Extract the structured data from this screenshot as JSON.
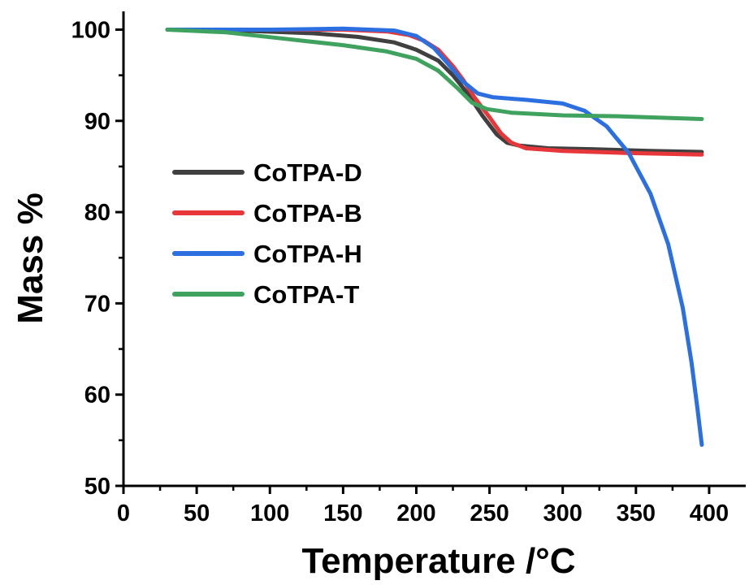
{
  "chart_data": {
    "type": "line",
    "title": "",
    "xlabel": "Temperature /°C",
    "ylabel": "Mass %",
    "xlim": [
      0,
      425
    ],
    "ylim": [
      50,
      102
    ],
    "x_ticks": [
      0,
      50,
      100,
      150,
      200,
      250,
      300,
      350,
      400
    ],
    "y_ticks": [
      50,
      60,
      70,
      80,
      90,
      100
    ],
    "grid": false,
    "legend_position": "middle-left",
    "series": [
      {
        "name": "CoTPA-D",
        "color": "#404040",
        "points": [
          [
            30,
            100
          ],
          [
            80,
            99.9
          ],
          [
            130,
            99.6
          ],
          [
            160,
            99.2
          ],
          [
            185,
            98.6
          ],
          [
            200,
            97.8
          ],
          [
            215,
            96.6
          ],
          [
            225,
            95.0
          ],
          [
            235,
            93.0
          ],
          [
            245,
            90.6
          ],
          [
            255,
            88.5
          ],
          [
            262,
            87.6
          ],
          [
            270,
            87.3
          ],
          [
            290,
            87.0
          ],
          [
            320,
            86.9
          ],
          [
            360,
            86.7
          ],
          [
            395,
            86.6
          ]
        ]
      },
      {
        "name": "CoTPA-B",
        "color": "#e8373a",
        "points": [
          [
            30,
            100
          ],
          [
            100,
            100
          ],
          [
            150,
            100
          ],
          [
            180,
            99.8
          ],
          [
            195,
            99.4
          ],
          [
            205,
            98.8
          ],
          [
            215,
            97.8
          ],
          [
            225,
            96.0
          ],
          [
            232,
            94.5
          ],
          [
            240,
            92.5
          ],
          [
            250,
            90.4
          ],
          [
            258,
            88.6
          ],
          [
            265,
            87.6
          ],
          [
            275,
            87.0
          ],
          [
            300,
            86.7
          ],
          [
            340,
            86.5
          ],
          [
            395,
            86.3
          ]
        ]
      },
      {
        "name": "CoTPA-H",
        "color": "#2c6fe0",
        "points": [
          [
            30,
            100
          ],
          [
            100,
            100
          ],
          [
            150,
            100.1
          ],
          [
            185,
            99.9
          ],
          [
            200,
            99.3
          ],
          [
            212,
            98.0
          ],
          [
            222,
            96.2
          ],
          [
            232,
            94.3
          ],
          [
            242,
            93.0
          ],
          [
            252,
            92.6
          ],
          [
            275,
            92.3
          ],
          [
            300,
            91.9
          ],
          [
            315,
            91.1
          ],
          [
            330,
            89.4
          ],
          [
            345,
            86.5
          ],
          [
            360,
            82.0
          ],
          [
            372,
            76.5
          ],
          [
            382,
            69.5
          ],
          [
            388,
            63.5
          ],
          [
            392,
            58.5
          ],
          [
            395,
            54.5
          ]
        ]
      },
      {
        "name": "CoTPA-T",
        "color": "#3fa35f",
        "points": [
          [
            30,
            100
          ],
          [
            70,
            99.7
          ],
          [
            110,
            99.0
          ],
          [
            150,
            98.3
          ],
          [
            180,
            97.6
          ],
          [
            200,
            96.8
          ],
          [
            215,
            95.5
          ],
          [
            228,
            93.6
          ],
          [
            238,
            92.0
          ],
          [
            248,
            91.3
          ],
          [
            265,
            90.9
          ],
          [
            300,
            90.6
          ],
          [
            340,
            90.5
          ],
          [
            395,
            90.2
          ]
        ]
      }
    ]
  }
}
